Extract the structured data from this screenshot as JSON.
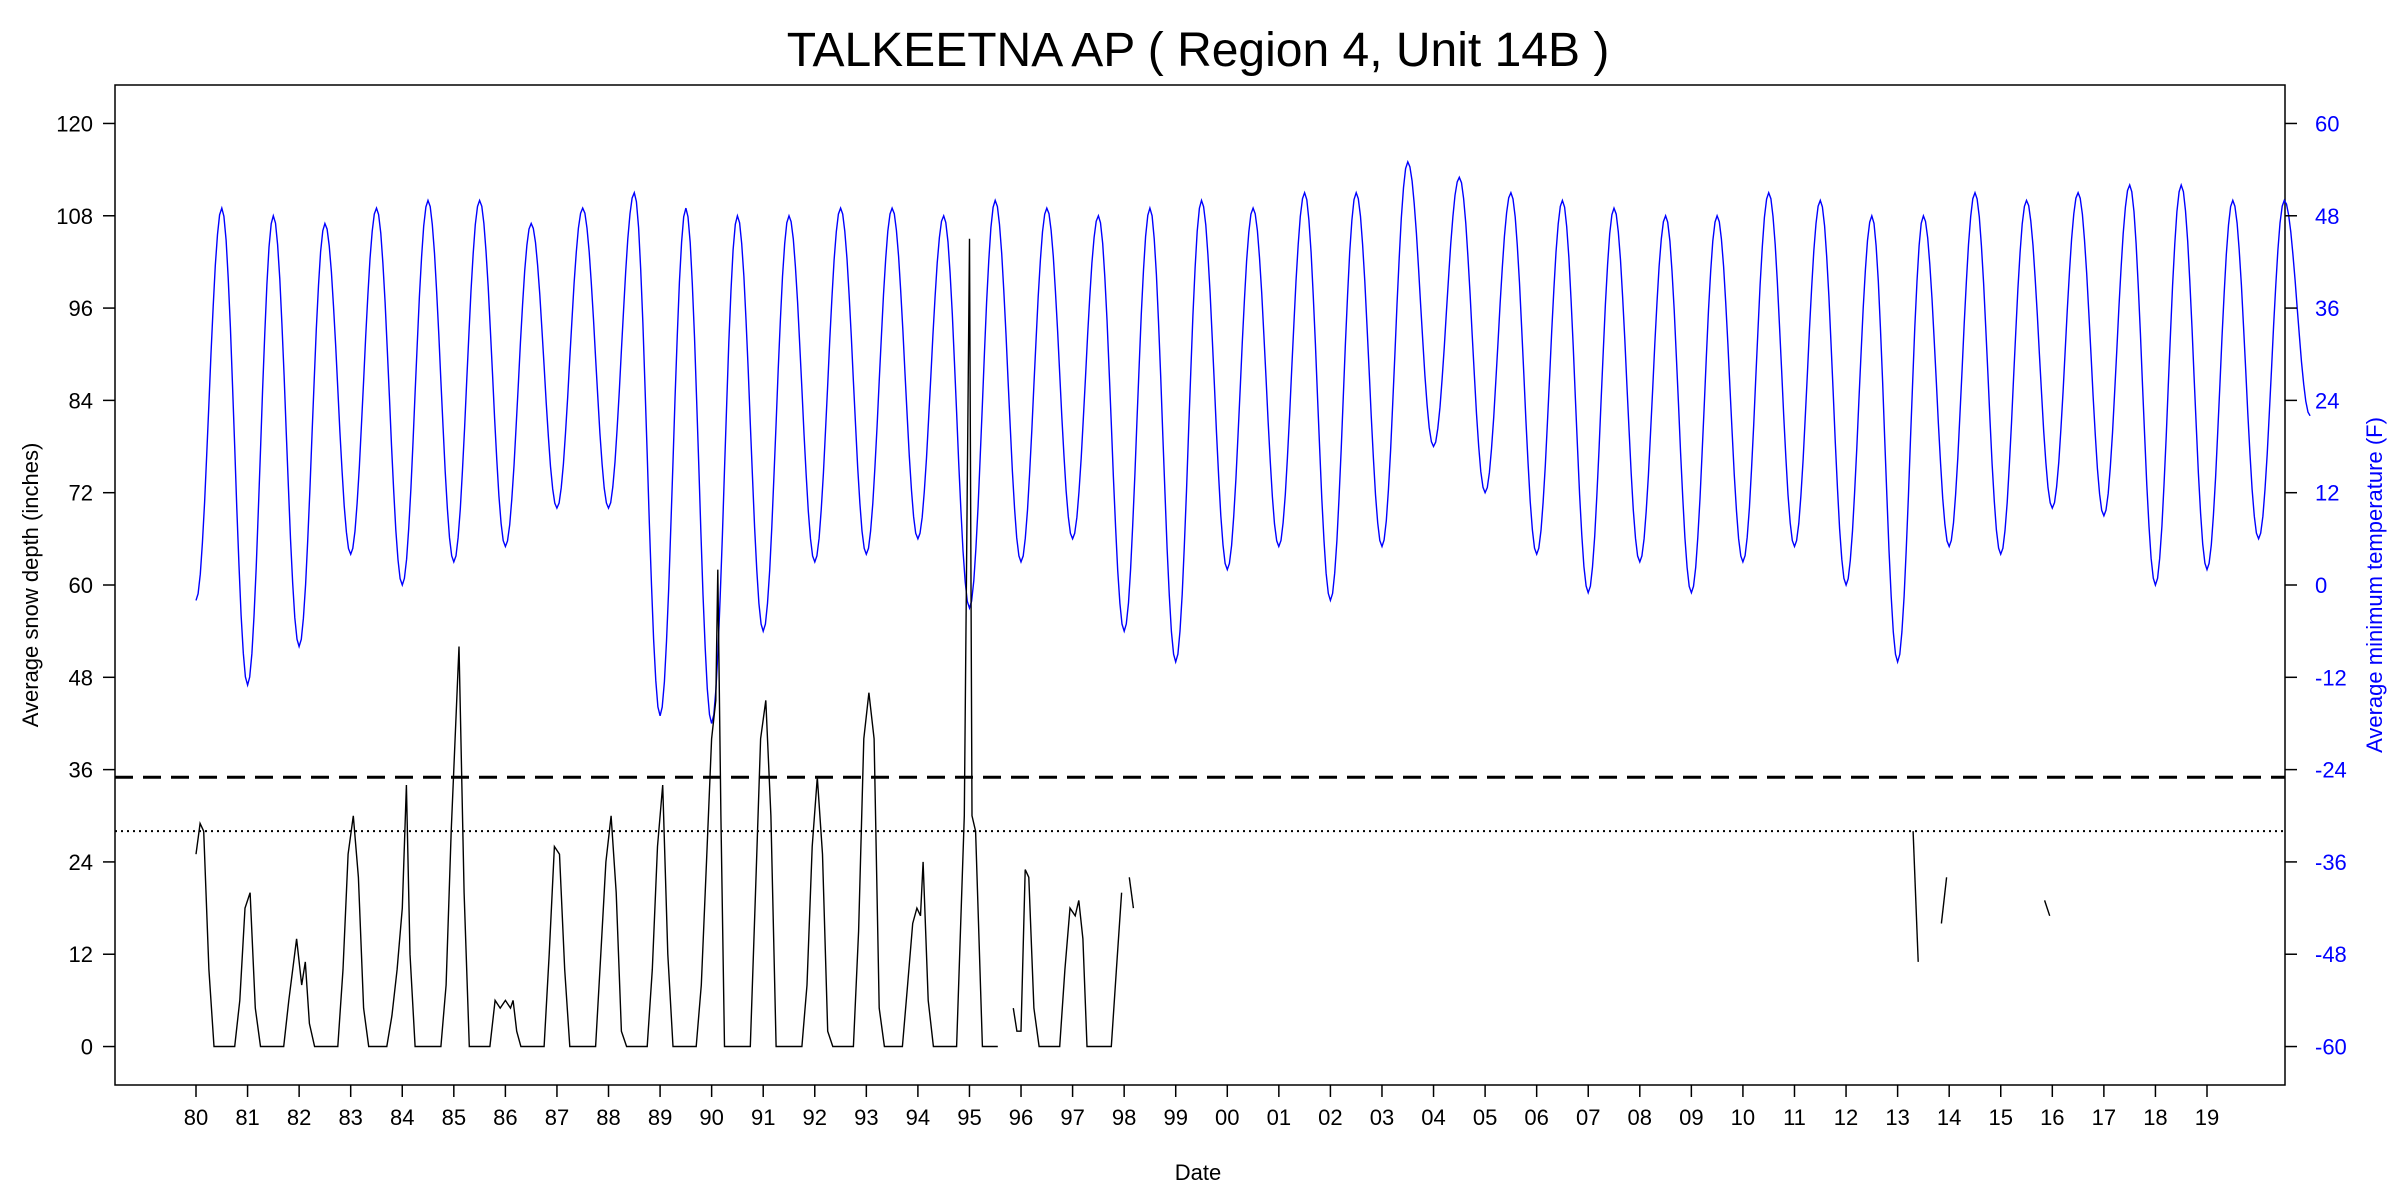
{
  "chart_data": {
    "type": "line",
    "title": "TALKEETNA AP ( Region 4, Unit 14B )",
    "xlabel": "Date",
    "ylabel": "Average snow depth (inches)",
    "y2label": "Average minimum temperature (F)",
    "x_tick_labels": [
      "80",
      "81",
      "82",
      "83",
      "84",
      "85",
      "86",
      "87",
      "88",
      "89",
      "90",
      "91",
      "92",
      "93",
      "94",
      "95",
      "96",
      "97",
      "98",
      "99",
      "00",
      "01",
      "02",
      "03",
      "04",
      "05",
      "06",
      "07",
      "08",
      "09",
      "10",
      "11",
      "12",
      "13",
      "14",
      "15",
      "16",
      "17",
      "18",
      "19"
    ],
    "xlim": [
      1980,
      2019
    ],
    "ylim": [
      -5,
      125
    ],
    "y_ticks": [
      0,
      12,
      24,
      36,
      48,
      60,
      72,
      84,
      96,
      108,
      120
    ],
    "y2lim": [
      -65,
      65
    ],
    "y2_ticks": [
      -60,
      -48,
      -36,
      -24,
      -12,
      0,
      12,
      24,
      36,
      48,
      60
    ],
    "colors": {
      "snow": "#000000",
      "temperature": "#0000ff",
      "right_axis": "#0000ff"
    },
    "reference_lines": [
      {
        "style": "dashed",
        "y": 35
      },
      {
        "style": "dotted",
        "y": 28
      }
    ],
    "temperature_peaks_F": [
      -2,
      49,
      -13,
      48,
      -8,
      47,
      4,
      49,
      0,
      50,
      3,
      50,
      5,
      47,
      10,
      49,
      10,
      51,
      -17,
      49,
      -18,
      48,
      -6,
      48,
      3,
      49,
      4,
      49,
      6,
      48,
      -3,
      50,
      3,
      49,
      6,
      48,
      -6,
      49,
      -10,
      50,
      2,
      49,
      5,
      51,
      -2,
      51,
      5,
      55,
      18,
      53,
      12,
      51,
      4,
      50,
      -1,
      49,
      3,
      48,
      -1,
      48,
      3,
      51,
      5,
      50,
      0,
      48,
      -10,
      48,
      5,
      51,
      4,
      50,
      10,
      51,
      9,
      52,
      0,
      52,
      2,
      50,
      6,
      50,
      22
    ],
    "snow_segments": [
      [
        [
          1980.0,
          25
        ],
        [
          1980.08,
          29
        ],
        [
          1980.15,
          28
        ],
        [
          1980.25,
          10
        ],
        [
          1980.35,
          0
        ],
        [
          1980.75,
          0
        ],
        [
          1980.85,
          6
        ],
        [
          1980.95,
          18
        ],
        [
          1981.05,
          20
        ],
        [
          1981.15,
          5
        ],
        [
          1981.25,
          0
        ],
        [
          1981.7,
          0
        ],
        [
          1981.8,
          6
        ],
        [
          1981.95,
          14
        ],
        [
          1982.05,
          8
        ],
        [
          1982.12,
          11
        ],
        [
          1982.2,
          3
        ],
        [
          1982.3,
          0
        ],
        [
          1982.75,
          0
        ],
        [
          1982.85,
          10
        ],
        [
          1982.95,
          25
        ],
        [
          1983.05,
          30
        ],
        [
          1983.15,
          22
        ],
        [
          1983.25,
          5
        ],
        [
          1983.35,
          0
        ],
        [
          1983.7,
          0
        ],
        [
          1983.8,
          4
        ],
        [
          1983.9,
          10
        ],
        [
          1984.0,
          18
        ],
        [
          1984.08,
          34
        ],
        [
          1984.15,
          12
        ],
        [
          1984.25,
          0
        ],
        [
          1984.75,
          0
        ],
        [
          1984.85,
          8
        ],
        [
          1984.95,
          28
        ],
        [
          1985.1,
          52
        ],
        [
          1985.2,
          20
        ],
        [
          1985.3,
          0
        ],
        [
          1985.7,
          0
        ],
        [
          1985.8,
          6
        ],
        [
          1985.9,
          5
        ],
        [
          1986.0,
          6
        ],
        [
          1986.1,
          5
        ],
        [
          1986.15,
          6
        ],
        [
          1986.22,
          2
        ],
        [
          1986.3,
          0
        ],
        [
          1986.75,
          0
        ],
        [
          1986.85,
          12
        ],
        [
          1986.95,
          26
        ],
        [
          1987.05,
          25
        ],
        [
          1987.15,
          10
        ],
        [
          1987.25,
          0
        ],
        [
          1987.75,
          0
        ],
        [
          1987.85,
          12
        ],
        [
          1987.95,
          24
        ],
        [
          1988.05,
          30
        ],
        [
          1988.15,
          20
        ],
        [
          1988.25,
          2
        ],
        [
          1988.35,
          0
        ],
        [
          1988.75,
          0
        ],
        [
          1988.85,
          10
        ],
        [
          1988.95,
          26
        ],
        [
          1989.05,
          34
        ],
        [
          1989.15,
          12
        ],
        [
          1989.25,
          0
        ],
        [
          1989.7,
          0
        ],
        [
          1989.8,
          8
        ],
        [
          1989.9,
          24
        ],
        [
          1990.0,
          40
        ],
        [
          1990.08,
          45
        ],
        [
          1990.12,
          62
        ],
        [
          1990.18,
          30
        ],
        [
          1990.25,
          0
        ],
        [
          1990.75,
          0
        ],
        [
          1990.85,
          20
        ],
        [
          1990.95,
          40
        ],
        [
          1991.05,
          45
        ],
        [
          1991.15,
          30
        ],
        [
          1991.25,
          0
        ],
        [
          1991.75,
          0
        ],
        [
          1991.85,
          8
        ],
        [
          1991.95,
          26
        ],
        [
          1992.05,
          35
        ],
        [
          1992.15,
          25
        ],
        [
          1992.25,
          2
        ],
        [
          1992.35,
          0
        ],
        [
          1992.75,
          0
        ],
        [
          1992.85,
          15
        ],
        [
          1992.95,
          40
        ],
        [
          1993.05,
          46
        ],
        [
          1993.15,
          40
        ],
        [
          1993.25,
          5
        ],
        [
          1993.35,
          0
        ],
        [
          1993.7,
          0
        ],
        [
          1993.8,
          8
        ],
        [
          1993.9,
          16
        ],
        [
          1993.98,
          18
        ],
        [
          1994.05,
          17
        ],
        [
          1994.1,
          24
        ],
        [
          1994.2,
          6
        ],
        [
          1994.3,
          0
        ],
        [
          1994.75,
          0
        ],
        [
          1994.9,
          30
        ],
        [
          1995.0,
          105
        ],
        [
          1995.05,
          30
        ],
        [
          1995.12,
          28
        ],
        [
          1995.25,
          0
        ],
        [
          1995.55,
          0
        ]
      ],
      [
        [
          1995.85,
          5
        ],
        [
          1995.92,
          2
        ],
        [
          1996.0,
          2
        ],
        [
          1996.08,
          23
        ],
        [
          1996.15,
          22
        ],
        [
          1996.25,
          5
        ],
        [
          1996.35,
          0
        ],
        [
          1996.75,
          0
        ],
        [
          1996.85,
          10
        ],
        [
          1996.95,
          18
        ],
        [
          1997.05,
          17
        ],
        [
          1997.12,
          19
        ],
        [
          1997.2,
          14
        ],
        [
          1997.28,
          0
        ],
        [
          1997.75,
          0
        ],
        [
          1997.85,
          10
        ],
        [
          1997.95,
          20
        ]
      ],
      [
        [
          1998.1,
          22
        ],
        [
          1998.18,
          18
        ]
      ],
      [
        [
          2013.3,
          28
        ],
        [
          2013.4,
          11
        ]
      ],
      [
        [
          2013.85,
          16
        ],
        [
          2013.95,
          22
        ]
      ],
      [
        [
          2015.85,
          19
        ],
        [
          2015.95,
          17
        ]
      ]
    ]
  }
}
